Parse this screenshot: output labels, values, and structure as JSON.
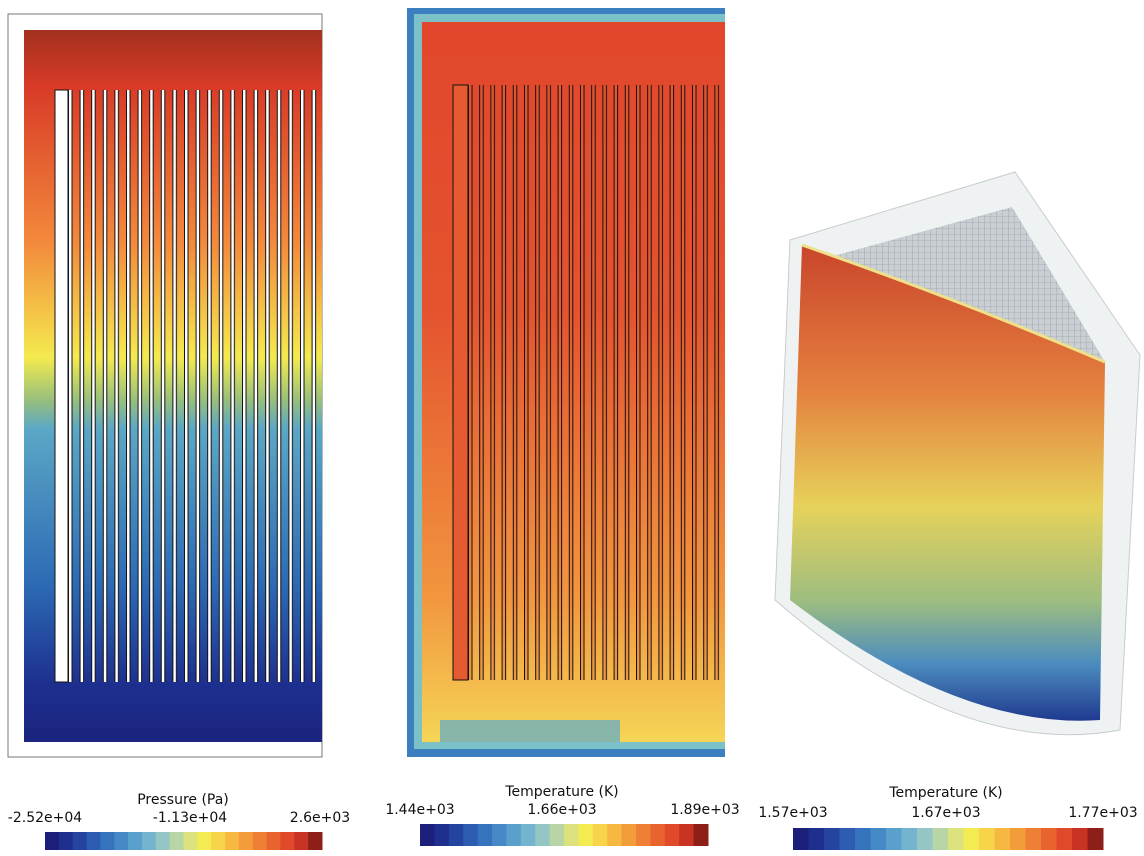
{
  "panels": [
    {
      "colorbar": {
        "title": "Pressure (Pa)",
        "ticks": [
          "-2.52e+04",
          "-1.13e+04",
          "2.6e+03"
        ]
      }
    },
    {
      "colorbar": {
        "title": "Temperature (K)",
        "ticks": [
          "1.44e+03",
          "1.66e+03",
          "1.89e+03"
        ]
      }
    },
    {
      "colorbar": {
        "title": "Temperature (K)",
        "ticks": [
          "1.57e+03",
          "1.67e+03",
          "1.77e+03"
        ]
      }
    }
  ]
}
